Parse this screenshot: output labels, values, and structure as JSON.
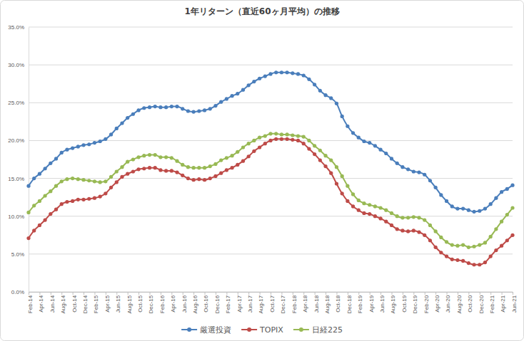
{
  "chart_data": {
    "type": "line",
    "title": "1年リターン（直近60ヶ月平均）の推移",
    "categories": [
      "Feb-14",
      null,
      "Apr-14",
      null,
      "Jun-14",
      null,
      "Aug-14",
      null,
      "Oct-14",
      null,
      "Dec-14",
      null,
      "Feb-15",
      null,
      "Apr-15",
      null,
      "Jun-15",
      null,
      "Aug-15",
      null,
      "Oct-15",
      null,
      "Dec-15",
      null,
      "Feb-16",
      null,
      "Apr-16",
      null,
      "Jun-16",
      null,
      "Aug-16",
      null,
      "Oct-16",
      null,
      "Dec-16",
      null,
      "Feb-17",
      null,
      "Apr-17",
      null,
      "Jun-17",
      null,
      "Aug-17",
      null,
      "Oct-17",
      null,
      "Dec-17",
      null,
      "Feb-18",
      null,
      "Apr-18",
      null,
      "Jun-18",
      null,
      "Aug-18",
      null,
      "Oct-18",
      null,
      "Dec-18",
      null,
      "Feb-19",
      null,
      "Apr-19",
      null,
      "Jun-19",
      null,
      "Aug-19",
      null,
      "Oct-19",
      null,
      "Dec-19",
      null,
      "Feb-20",
      null,
      "Apr-20",
      null,
      "Jun-20",
      null,
      "Aug-20",
      null,
      "Oct-20",
      null,
      "Dec-20",
      null,
      "Feb-21",
      null,
      "Apr-21",
      null,
      "Jun-21"
    ],
    "series": [
      {
        "name": "厳選投資",
        "color": "#4a7ebb",
        "marker": "circle",
        "values": [
          14.0,
          15.0,
          15.6,
          16.3,
          17.0,
          17.6,
          18.4,
          18.8,
          19.0,
          19.2,
          19.4,
          19.5,
          19.7,
          19.9,
          20.2,
          20.8,
          21.6,
          22.3,
          23.0,
          23.5,
          24.0,
          24.3,
          24.4,
          24.5,
          24.4,
          24.4,
          24.5,
          24.5,
          24.2,
          23.9,
          23.8,
          23.9,
          24.0,
          24.2,
          24.6,
          25.1,
          25.5,
          25.9,
          26.2,
          26.7,
          27.3,
          27.8,
          28.2,
          28.5,
          28.8,
          29.0,
          29.0,
          29.0,
          28.9,
          28.8,
          28.6,
          28.1,
          27.4,
          26.6,
          26.0,
          25.6,
          24.9,
          23.2,
          21.9,
          21.0,
          20.4,
          19.9,
          19.7,
          19.3,
          18.8,
          18.3,
          17.6,
          17.0,
          16.5,
          16.2,
          15.9,
          15.8,
          15.5,
          14.7,
          13.8,
          12.8,
          12.0,
          11.3,
          11.0,
          11.0,
          10.8,
          10.6,
          10.7,
          11.0,
          11.6,
          12.4,
          13.2,
          13.6,
          14.1
        ]
      },
      {
        "name": "TOPIX",
        "color": "#be4b48",
        "marker": "circle",
        "values": [
          7.1,
          8.1,
          8.8,
          9.5,
          10.3,
          10.9,
          11.6,
          11.9,
          12.0,
          12.2,
          12.2,
          12.3,
          12.4,
          12.6,
          13.0,
          13.8,
          14.5,
          15.2,
          15.6,
          15.9,
          16.2,
          16.3,
          16.4,
          16.4,
          16.1,
          16.0,
          16.0,
          15.8,
          15.4,
          15.0,
          14.8,
          14.9,
          14.8,
          15.0,
          15.3,
          15.7,
          16.1,
          16.4,
          16.8,
          17.3,
          17.9,
          18.6,
          19.1,
          19.6,
          20.0,
          20.2,
          20.2,
          20.2,
          20.1,
          20.0,
          19.6,
          18.9,
          18.2,
          17.4,
          16.6,
          15.7,
          14.3,
          13.0,
          12.0,
          11.3,
          10.8,
          10.4,
          10.3,
          10.0,
          9.7,
          9.3,
          8.8,
          8.3,
          8.1,
          8.0,
          8.1,
          7.9,
          7.5,
          6.8,
          5.9,
          5.2,
          4.7,
          4.3,
          4.2,
          4.1,
          3.8,
          3.6,
          3.6,
          3.9,
          4.7,
          5.5,
          6.1,
          6.8,
          7.5
        ]
      },
      {
        "name": "日経225",
        "color": "#98b954",
        "marker": "circle",
        "values": [
          10.5,
          11.4,
          12.0,
          12.7,
          13.3,
          14.0,
          14.6,
          14.9,
          15.0,
          14.9,
          14.8,
          14.7,
          14.6,
          14.5,
          14.6,
          15.2,
          15.9,
          16.5,
          17.2,
          17.5,
          17.8,
          18.0,
          18.1,
          18.1,
          17.8,
          17.8,
          17.7,
          17.3,
          16.8,
          16.5,
          16.4,
          16.4,
          16.4,
          16.6,
          16.9,
          17.4,
          17.7,
          18.0,
          18.5,
          19.1,
          19.6,
          20.0,
          20.4,
          20.6,
          20.9,
          20.9,
          20.8,
          20.8,
          20.7,
          20.6,
          20.5,
          20.0,
          19.3,
          18.7,
          18.0,
          17.4,
          16.5,
          15.3,
          14.0,
          12.9,
          12.1,
          11.7,
          11.5,
          11.3,
          11.1,
          10.8,
          10.4,
          10.0,
          9.8,
          9.8,
          9.9,
          9.8,
          9.5,
          8.8,
          8.0,
          7.2,
          6.6,
          6.2,
          6.1,
          6.2,
          5.9,
          6.0,
          6.2,
          6.5,
          7.3,
          8.3,
          9.3,
          10.2,
          11.1
        ]
      }
    ],
    "ylim": [
      0,
      35
    ],
    "yticks": [
      {
        "value": 0,
        "label": "0.0%"
      },
      {
        "value": 5,
        "label": "5.0%"
      },
      {
        "value": 10,
        "label": "10.0%"
      },
      {
        "value": 15,
        "label": "15.0%"
      },
      {
        "value": 20,
        "label": "20.0%"
      },
      {
        "value": 25,
        "label": "25.0%"
      },
      {
        "value": 30,
        "label": "30.0%"
      },
      {
        "value": 35,
        "label": "35.0%"
      }
    ],
    "grid": true,
    "legend": "bottom"
  }
}
